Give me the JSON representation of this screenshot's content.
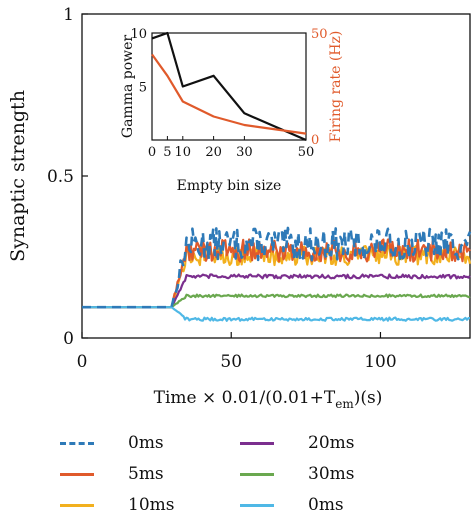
{
  "chart_data": [
    {
      "type": "line",
      "xlabel": "Time × 0.01/(0.01+T",
      "xlabel_subscript": "em",
      "xlabel_suffix": ")(s)",
      "ylabel": "Synaptic strength",
      "xlim": [
        0,
        130
      ],
      "ylim": [
        0,
        1
      ],
      "xticks": [
        0,
        50,
        100
      ],
      "xtick_labels": [
        "0",
        "50",
        "100"
      ],
      "yticks": [
        0,
        0.5,
        1
      ],
      "ytick_labels": [
        "0",
        "0.5",
        "1"
      ],
      "grid": false,
      "legend_position": "bottom",
      "series": [
        {
          "name": "0ms",
          "color": "#2e7ab8",
          "dash": "dashed",
          "baseline": 0.095,
          "onset": 30,
          "level": 0.29,
          "noise": 0.05
        },
        {
          "name": "5ms",
          "color": "#e05a2b",
          "dash": "solid",
          "baseline": 0.095,
          "onset": 30,
          "level": 0.27,
          "noise": 0.035
        },
        {
          "name": "10ms",
          "color": "#f2b01e",
          "dash": "solid",
          "baseline": 0.095,
          "onset": 30,
          "level": 0.255,
          "noise": 0.03
        },
        {
          "name": "20ms",
          "color": "#7b2f8e",
          "dash": "solid",
          "baseline": 0.095,
          "onset": 30,
          "level": 0.19,
          "noise": 0.006
        },
        {
          "name": "30ms",
          "color": "#6aa84f",
          "dash": "solid",
          "baseline": 0.095,
          "onset": 30,
          "level": 0.13,
          "noise": 0.004
        },
        {
          "name": "0ms",
          "color": "#4fb8e6",
          "dash": "solid",
          "baseline": 0.095,
          "onset": 30,
          "level": 0.058,
          "noise": 0.005
        }
      ]
    },
    {
      "type": "line",
      "xlabel": "Empty bin size",
      "ylabel": "Gamma power",
      "ylabel_right": "Firing rate (Hz)",
      "x": [
        0,
        5,
        10,
        20,
        30,
        50
      ],
      "xtick_labels": [
        "0",
        "5",
        "10",
        "20",
        "30",
        "50"
      ],
      "ylim": [
        0,
        10
      ],
      "yticks_left": [
        "5",
        "10"
      ],
      "ylim_right": [
        0,
        50
      ],
      "yticks_right": [
        "0",
        "50"
      ],
      "series": [
        {
          "name": "Gamma power",
          "color": "#111111",
          "axis": "left",
          "values": [
            9.5,
            10.5,
            5.0,
            6.0,
            2.5,
            0
          ]
        },
        {
          "name": "Firing rate",
          "color": "#e05a2b",
          "axis": "right",
          "values": [
            40,
            30,
            18,
            11,
            7,
            3
          ]
        }
      ]
    }
  ],
  "legend": [
    {
      "label": "0ms",
      "color": "#2e7ab8",
      "dash": "dashed"
    },
    {
      "label": "20ms",
      "color": "#7b2f8e",
      "dash": "solid"
    },
    {
      "label": "5ms",
      "color": "#e05a2b",
      "dash": "solid"
    },
    {
      "label": "30ms",
      "color": "#6aa84f",
      "dash": "solid"
    },
    {
      "label": "10ms",
      "color": "#f2b01e",
      "dash": "solid"
    },
    {
      "label": "0ms",
      "color": "#4fb8e6",
      "dash": "solid"
    }
  ]
}
